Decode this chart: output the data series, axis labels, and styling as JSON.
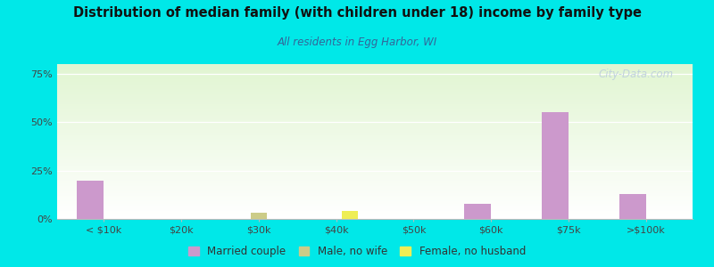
{
  "title": "Distribution of median family (with children under 18) income by family type",
  "subtitle": "All residents in Egg Harbor, WI",
  "background_color": "#00e8e8",
  "categories": [
    "< $10k",
    "$20k",
    "$30k",
    "$40k",
    "$50k",
    "$60k",
    "$75k",
    ">$100k"
  ],
  "married_couple": [
    20,
    0,
    0,
    0,
    0,
    8,
    55,
    13
  ],
  "male_no_wife": [
    0,
    0,
    3,
    0,
    0,
    0,
    0,
    0
  ],
  "female_no_husband": [
    0,
    0,
    0,
    4,
    0,
    0,
    0,
    0
  ],
  "married_color": "#cc99cc",
  "male_color": "#cccc88",
  "female_color": "#eeee55",
  "ylim": [
    0,
    80
  ],
  "yticks": [
    0,
    25,
    50,
    75
  ],
  "ytick_labels": [
    "0%",
    "25%",
    "50%",
    "75%"
  ],
  "bar_width": 0.35,
  "legend_labels": [
    "Married couple",
    "Male, no wife",
    "Female, no husband"
  ],
  "watermark": "City-Data.com",
  "title_color": "#111111",
  "subtitle_color": "#336699"
}
